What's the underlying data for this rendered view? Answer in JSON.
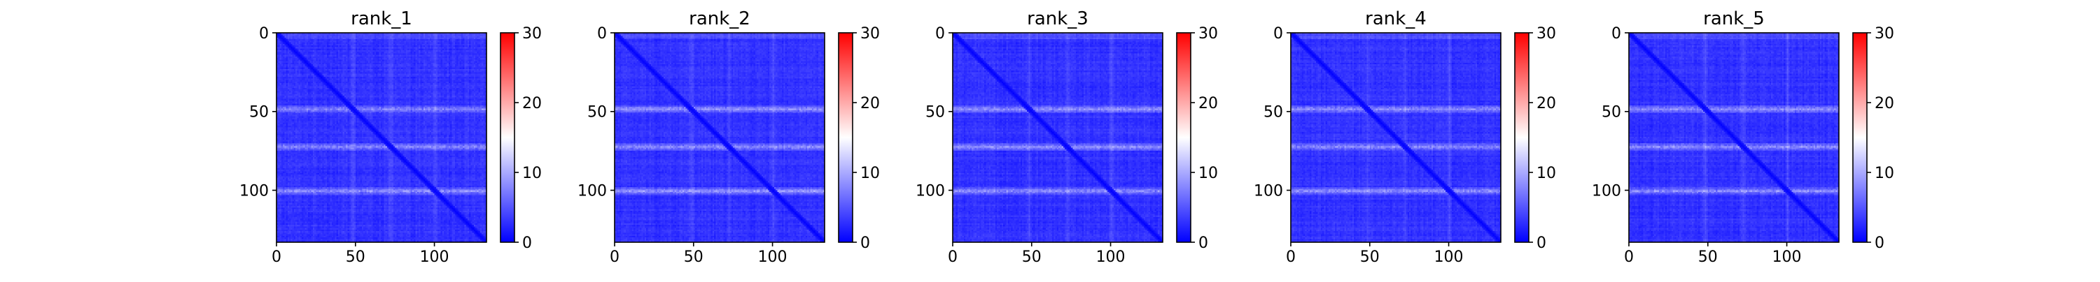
{
  "figure": {
    "background": "#ffffff"
  },
  "chart_data": [
    {
      "type": "heatmap",
      "title": "rank_1",
      "matrix_size": 133,
      "xticks": [
        0,
        50,
        100
      ],
      "yticks": [
        0,
        50,
        100
      ],
      "xlim": [
        0,
        133
      ],
      "ylim": [
        133,
        0
      ],
      "colorbar": {
        "range": [
          0,
          30
        ],
        "ticks": [
          0,
          10,
          20,
          30
        ],
        "colormap": "bwr",
        "colors": [
          "#0000ff",
          "#ffffff",
          "#ff0000"
        ]
      },
      "pattern": {
        "background_value": 2,
        "diagonal_value": 0,
        "bright_row_bands": [
          48,
          72,
          100
        ],
        "band_value": 8
      }
    },
    {
      "type": "heatmap",
      "title": "rank_2",
      "matrix_size": 133,
      "xticks": [
        0,
        50,
        100
      ],
      "yticks": [
        0,
        50,
        100
      ],
      "xlim": [
        0,
        133
      ],
      "ylim": [
        133,
        0
      ],
      "colorbar": {
        "range": [
          0,
          30
        ],
        "ticks": [
          0,
          10,
          20,
          30
        ],
        "colormap": "bwr",
        "colors": [
          "#0000ff",
          "#ffffff",
          "#ff0000"
        ]
      },
      "pattern": {
        "background_value": 2,
        "diagonal_value": 0,
        "bright_row_bands": [
          48,
          72,
          100
        ],
        "band_value": 8
      }
    },
    {
      "type": "heatmap",
      "title": "rank_3",
      "matrix_size": 133,
      "xticks": [
        0,
        50,
        100
      ],
      "yticks": [
        0,
        50,
        100
      ],
      "xlim": [
        0,
        133
      ],
      "ylim": [
        133,
        0
      ],
      "colorbar": {
        "range": [
          0,
          30
        ],
        "ticks": [
          0,
          10,
          20,
          30
        ],
        "colormap": "bwr",
        "colors": [
          "#0000ff",
          "#ffffff",
          "#ff0000"
        ]
      },
      "pattern": {
        "background_value": 2,
        "diagonal_value": 0,
        "bright_row_bands": [
          48,
          72,
          100
        ],
        "band_value": 8
      }
    },
    {
      "type": "heatmap",
      "title": "rank_4",
      "matrix_size": 133,
      "xticks": [
        0,
        50,
        100
      ],
      "yticks": [
        0,
        50,
        100
      ],
      "xlim": [
        0,
        133
      ],
      "ylim": [
        133,
        0
      ],
      "colorbar": {
        "range": [
          0,
          30
        ],
        "ticks": [
          0,
          10,
          20,
          30
        ],
        "colormap": "bwr",
        "colors": [
          "#0000ff",
          "#ffffff",
          "#ff0000"
        ]
      },
      "pattern": {
        "background_value": 2,
        "diagonal_value": 0,
        "bright_row_bands": [
          48,
          72,
          100
        ],
        "band_value": 8
      }
    },
    {
      "type": "heatmap",
      "title": "rank_5",
      "matrix_size": 133,
      "xticks": [
        0,
        50,
        100
      ],
      "yticks": [
        0,
        50,
        100
      ],
      "xlim": [
        0,
        133
      ],
      "ylim": [
        133,
        0
      ],
      "colorbar": {
        "range": [
          0,
          30
        ],
        "ticks": [
          0,
          10,
          20,
          30
        ],
        "colormap": "bwr",
        "colors": [
          "#0000ff",
          "#ffffff",
          "#ff0000"
        ]
      },
      "pattern": {
        "background_value": 2,
        "diagonal_value": 0,
        "bright_row_bands": [
          48,
          72,
          100
        ],
        "band_value": 8
      }
    }
  ]
}
